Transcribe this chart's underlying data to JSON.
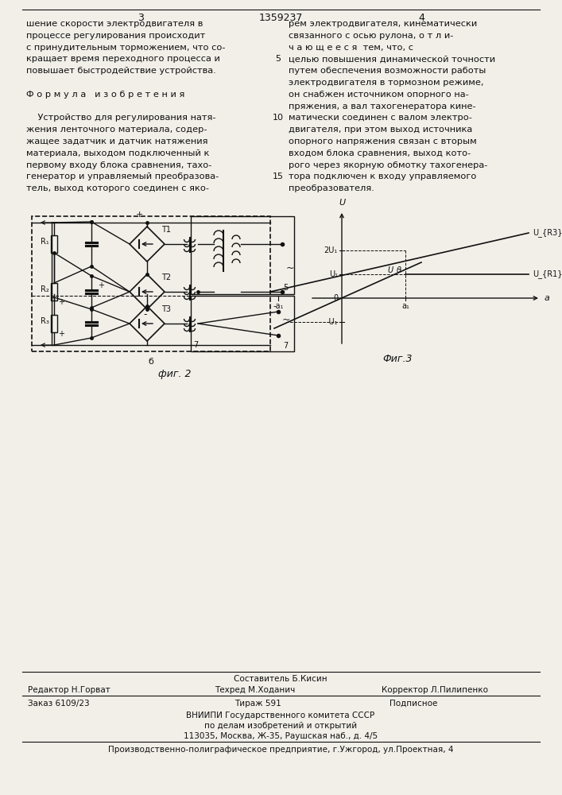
{
  "page_number_left": "3",
  "page_number_center": "1359237",
  "page_number_right": "4",
  "bg_color": "#f2efe9",
  "left_column_text": [
    "шение скорости электродвигателя в",
    "процессе регулирования происходит",
    "с принудительным торможением, что со-",
    "кращает время переходного процесса и",
    "повышает быстродействие устройства.",
    "",
    "Ф о р м у л а   и з о б р е т е н и я",
    "",
    "    Устройство для регулирования натя-",
    "жения ленточного материала, содер-",
    "жащее задатчик и датчик натяжения",
    "материала, выходом подключенный к",
    "первому входу блока сравнения, тахо-",
    "генератор и управляемый преобразова-",
    "тель, выход которого соединен с яко-"
  ],
  "line_number_5": "5",
  "line_number_10": "10",
  "line_number_15": "15",
  "right_column_text": [
    "рем электродвигателя, кинематически",
    "связанного с осью рулона, о т л и-",
    "ч а ю щ е е с я  тем, что, с",
    "целью повышения динамической точности",
    "путем обеспечения возможности работы",
    "электродвигателя в тормозном режиме,",
    "он снабжен источником опорного на-",
    "пряжения, а вал тахогенератора кине-",
    "матически соединен с валом электро-",
    "двигателя, при этом выход источника",
    "опорного напряжения связан с вторым",
    "входом блока сравнения, выход кото-",
    "рого через якорную обмотку тахогенера-",
    "тора подключен к входу управляемого",
    "преобразователя."
  ],
  "fig2_label": "фиг. 2",
  "fig3_label": "Фиг.3",
  "fig2_sublabel": "б",
  "fig2_number5": "5",
  "fig2_number7": "7",
  "footer_sestavitel": "Составитель Б.Кисин",
  "footer_editor": "Редактор Н.Горват",
  "footer_techred": "Техред М.Ходанич",
  "footer_corrector": "Корректор Л.Пилипенко",
  "footer_order": "Заказ 6109/23",
  "footer_tirazh": "Тираж 591",
  "footer_podpisnoe": "Подписное",
  "footer_vniiipi": "ВНИИПИ Государственного комитета СССР",
  "footer_po_delam": "по делам изобретений и открытий",
  "footer_address": "113035, Москва, Ж-35, Раушская наб., д. 4/5",
  "footer_factory": "Производственно-полиграфическое предприятие, г.Ужгород, ул.Проектная, 4"
}
